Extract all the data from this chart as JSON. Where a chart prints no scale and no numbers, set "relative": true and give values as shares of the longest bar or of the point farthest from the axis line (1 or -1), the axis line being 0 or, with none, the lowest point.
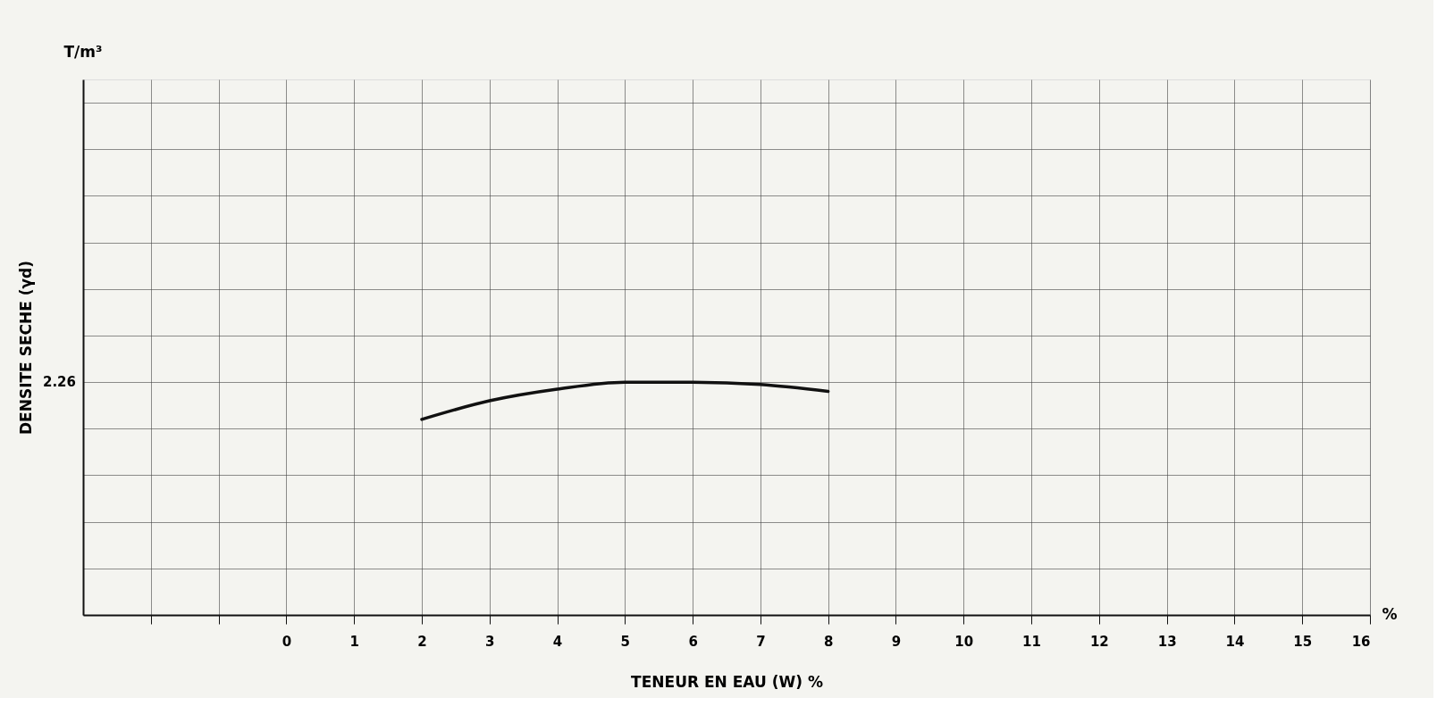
{
  "chart_data": {
    "type": "line",
    "relative": true,
    "xlabel": "TENEUR EN EAU (W) %",
    "ylabel": "DENSITE SECHE (γd)",
    "x": [
      2,
      3,
      4,
      5,
      5.5,
      6,
      7,
      8
    ],
    "series": [
      {
        "color": "#111111",
        "values": [
          0.84,
          0.92,
          0.97,
          1.0,
          1.0,
          1.0,
          0.99,
          0.96
        ]
      }
    ],
    "xlim": [
      -3,
      16
    ],
    "xticks": [
      {
        "value": -2,
        "label": null
      },
      {
        "value": -1,
        "label": null
      },
      0,
      1,
      2,
      3,
      4,
      5,
      6,
      7,
      8,
      9,
      10,
      11,
      12,
      13,
      14,
      15,
      16
    ],
    "annotations": [
      "2.26",
      "T/m³",
      "%"
    ],
    "grid": true,
    "marker": "none",
    "line_style": "solid"
  }
}
